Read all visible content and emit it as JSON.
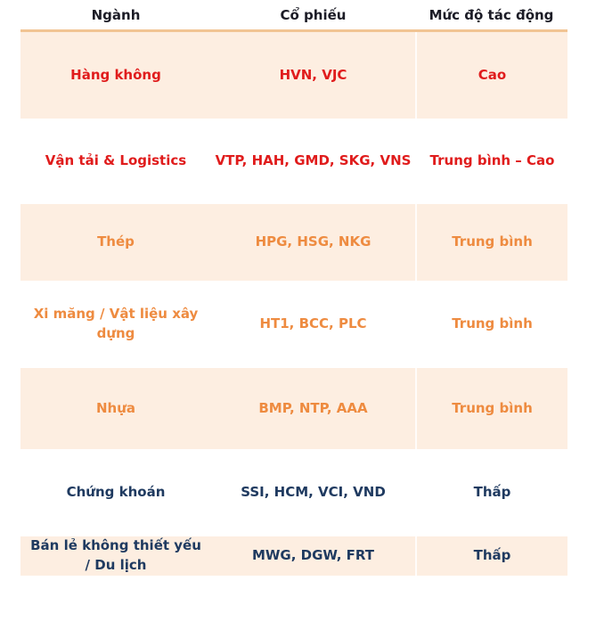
{
  "colors": {
    "header_text": "#1c1c26",
    "table_top_border": "#f1c493",
    "row_peach_bg": "#fdeee1",
    "row_white_bg": "#ffffff",
    "impact_high_red": "#e01c1c",
    "impact_medium_orange": "#ee8b40",
    "impact_low_navy": "#1f3a60"
  },
  "chart_data": {
    "type": "table",
    "columns": [
      "Ngành",
      "Cổ phiếu",
      "Mức độ tác động"
    ],
    "rows": [
      {
        "sector": "Hàng không",
        "stocks": "HVN, VJC",
        "impact": "Cao",
        "color": "#e01c1c",
        "bg": "#fdeee1"
      },
      {
        "sector": "Vận tải & Logistics",
        "stocks": "VTP, HAH, GMD, SKG, VNS",
        "impact": "Trung bình – Cao",
        "color": "#e01c1c",
        "bg": "#ffffff"
      },
      {
        "sector": "Thép",
        "stocks": "HPG, HSG, NKG",
        "impact": "Trung bình",
        "color": "#ee8b40",
        "bg": "#fdeee1"
      },
      {
        "sector": "Xi măng / Vật liệu xây\ndựng",
        "stocks": "HT1, BCC, PLC",
        "impact": "Trung bình",
        "color": "#ee8b40",
        "bg": "#ffffff"
      },
      {
        "sector": "Nhựa",
        "stocks": "BMP, NTP, AAA",
        "impact": "Trung bình",
        "color": "#ee8b40",
        "bg": "#fdeee1"
      },
      {
        "sector": "Chứng khoán",
        "stocks": "SSI, HCM, VCI, VND",
        "impact": "Thấp",
        "color": "#1f3a60",
        "bg": "#ffffff"
      },
      {
        "sector": "Bán lẻ không thiết yếu\n/ Du lịch",
        "stocks": "MWG, DGW, FRT",
        "impact": "Thấp",
        "color": "#1f3a60",
        "bg": "#fdeee1"
      }
    ]
  }
}
